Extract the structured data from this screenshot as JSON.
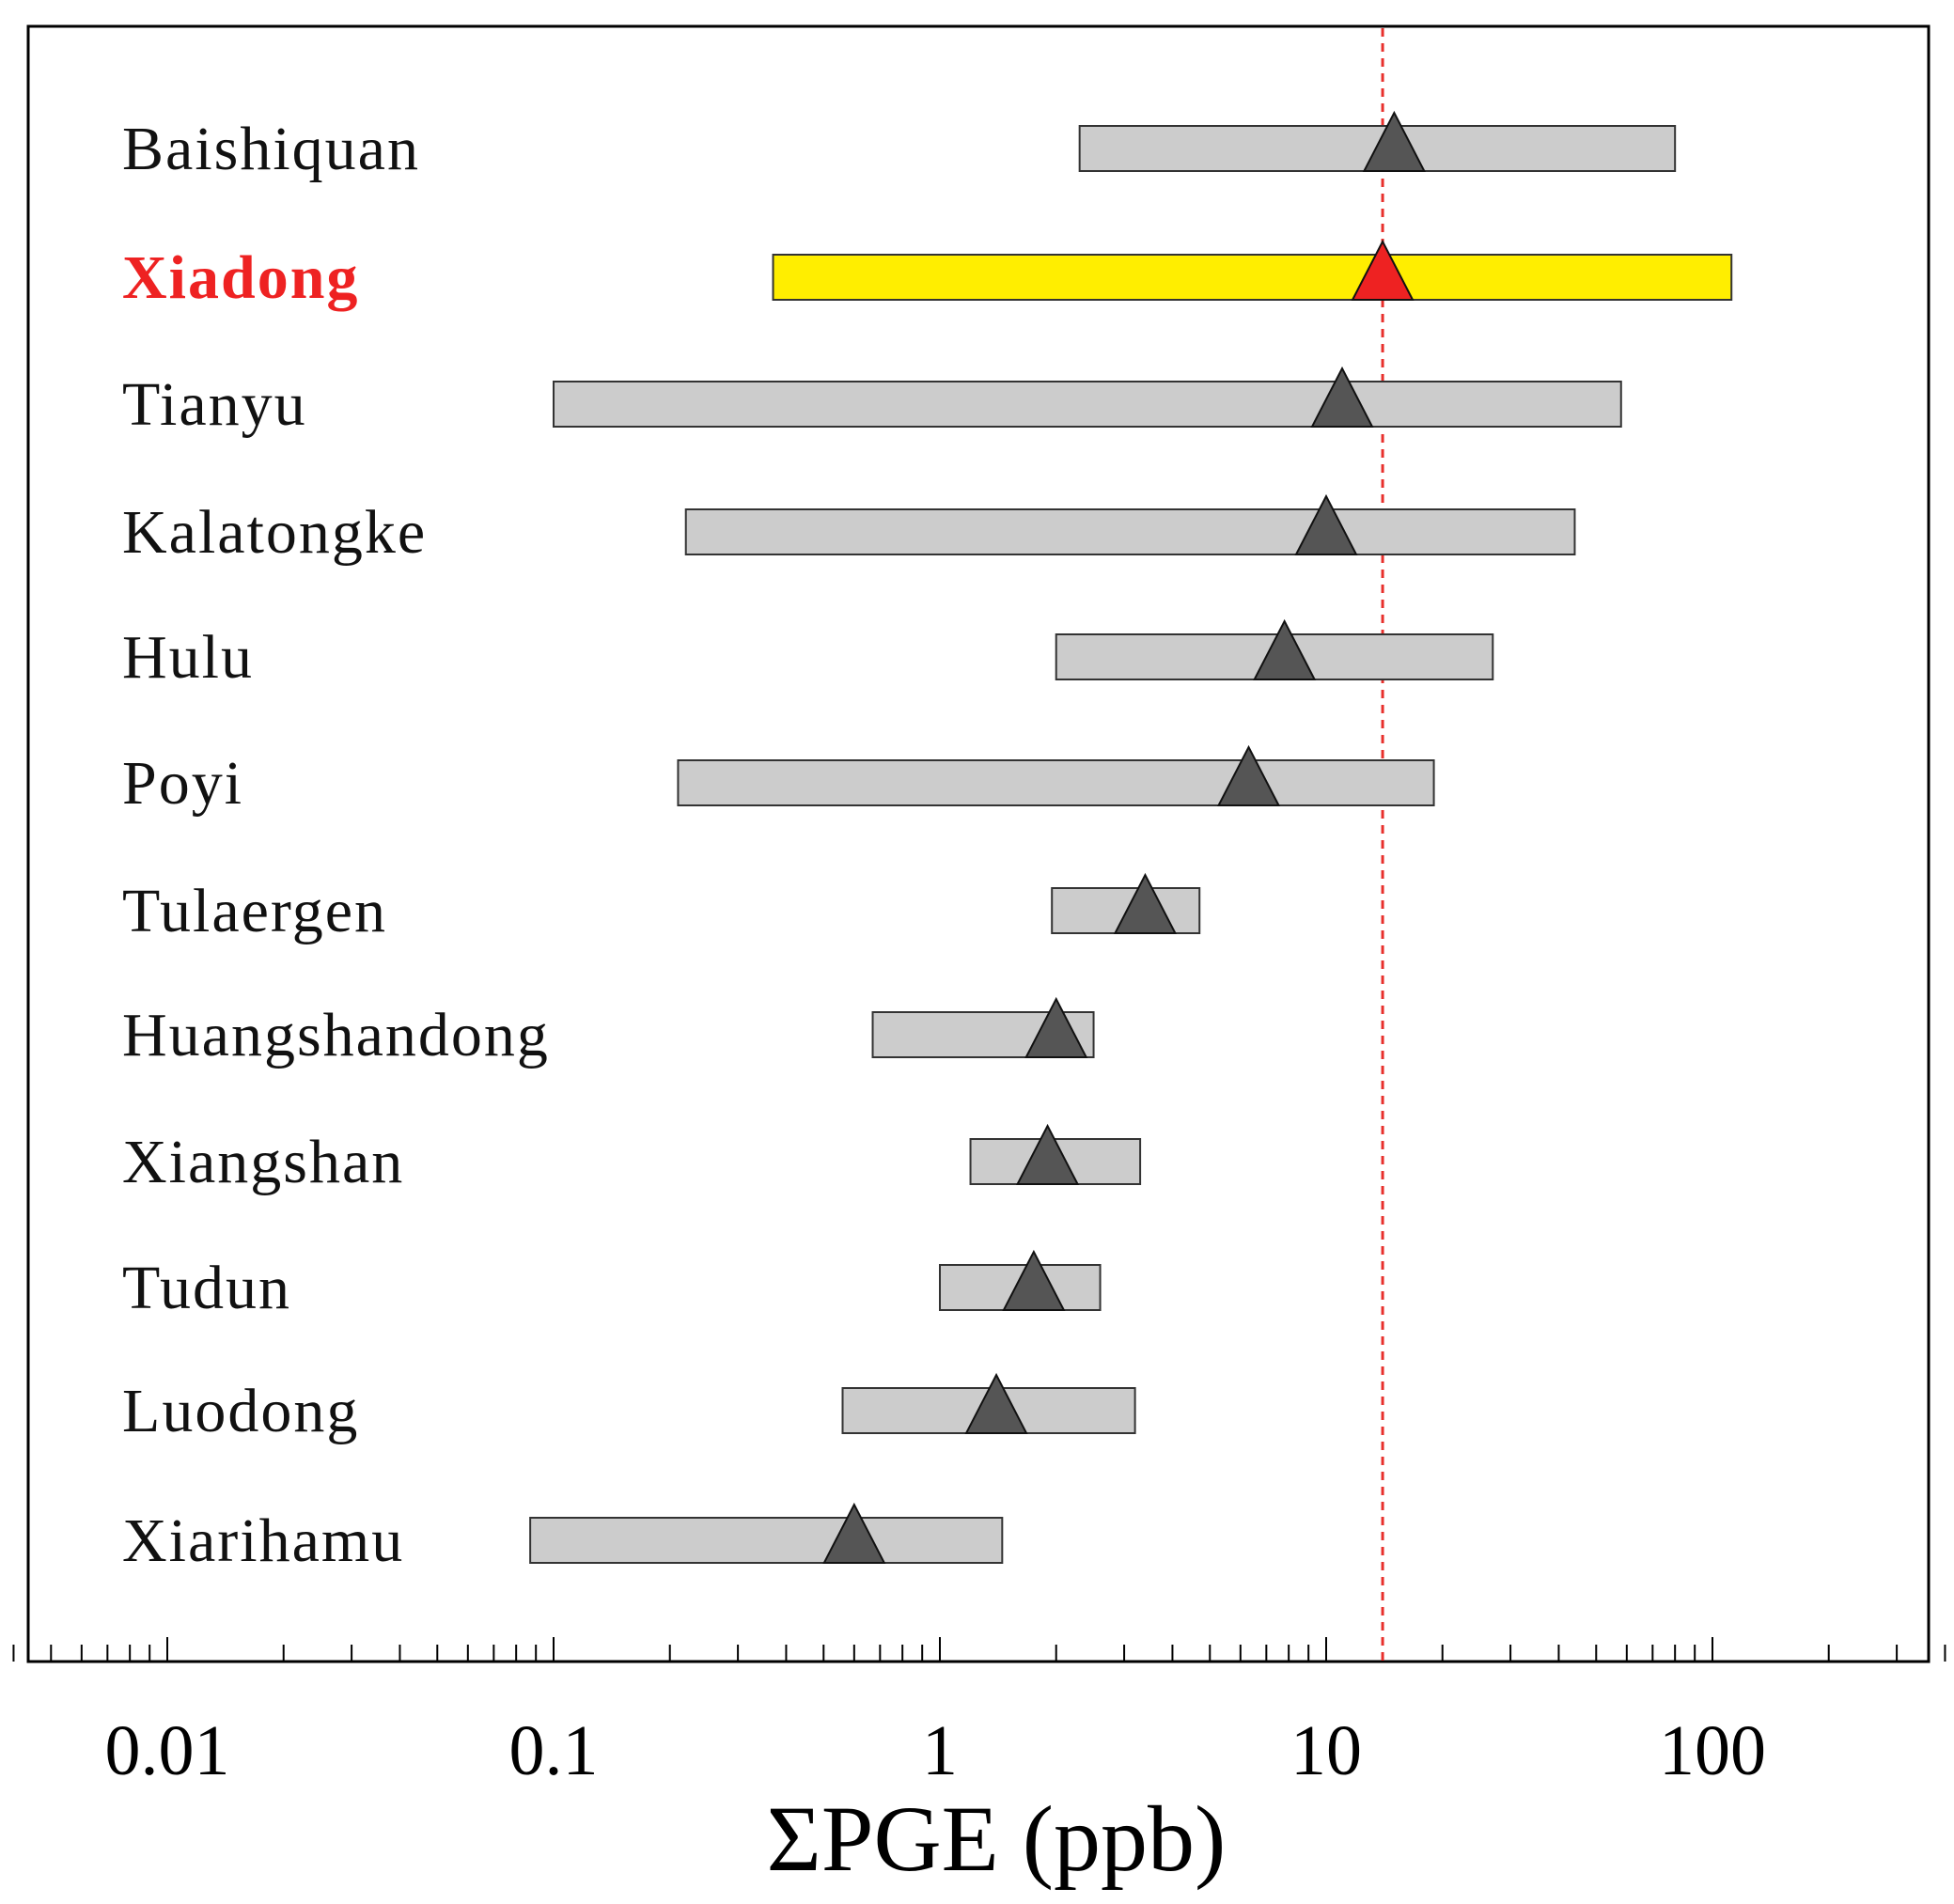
{
  "chart_data": {
    "type": "range",
    "xlabel": "ΣPGE (ppb)",
    "xscale": "log",
    "xlim": [
      0.003,
      400
    ],
    "xticks": [
      {
        "value": 0.01,
        "label": "0.01"
      },
      {
        "value": 0.1,
        "label": "0.1"
      },
      {
        "value": 1,
        "label": "1"
      },
      {
        "value": 10,
        "label": "10"
      },
      {
        "value": 100,
        "label": "100"
      }
    ],
    "reference_line": {
      "value": 14,
      "style": "dashed",
      "color": "#e8302c"
    },
    "colors": {
      "bar": "#cccccc",
      "bar_highlight": "#ffee00",
      "marker": "#555555",
      "marker_highlight": "#ee2222",
      "label": "#111111",
      "label_highlight": "#ee2222"
    },
    "series": [
      {
        "name": "Baishiquan",
        "min": 2.3,
        "max": 80,
        "mean": 15,
        "highlight": false
      },
      {
        "name": "Xiadong",
        "min": 0.37,
        "max": 112,
        "mean": 14,
        "highlight": true
      },
      {
        "name": "Tianyu",
        "min": 0.1,
        "max": 58,
        "mean": 11,
        "highlight": false
      },
      {
        "name": "Kalatongke",
        "min": 0.22,
        "max": 44,
        "mean": 10,
        "highlight": false
      },
      {
        "name": "Hulu",
        "min": 2.0,
        "max": 27,
        "mean": 7.8,
        "highlight": false
      },
      {
        "name": "Poyi",
        "min": 0.21,
        "max": 19,
        "mean": 6.3,
        "highlight": false
      },
      {
        "name": "Tulaergen",
        "min": 1.95,
        "max": 4.7,
        "mean": 3.4,
        "highlight": false
      },
      {
        "name": "Huangshandong",
        "min": 0.67,
        "max": 2.5,
        "mean": 2.0,
        "highlight": false
      },
      {
        "name": "Xiangshan",
        "min": 1.2,
        "max": 3.3,
        "mean": 1.9,
        "highlight": false
      },
      {
        "name": "Tudun",
        "min": 1.0,
        "max": 2.6,
        "mean": 1.75,
        "highlight": false
      },
      {
        "name": "Luodong",
        "min": 0.56,
        "max": 3.2,
        "mean": 1.4,
        "highlight": false
      },
      {
        "name": "Xiarihamu",
        "min": 0.087,
        "max": 1.45,
        "mean": 0.6,
        "highlight": false
      }
    ]
  }
}
